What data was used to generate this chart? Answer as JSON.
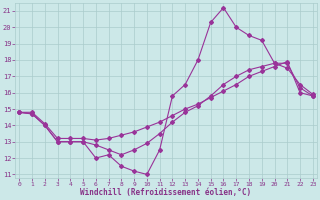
{
  "background_color": "#cce8e8",
  "grid_color": "#aacccc",
  "line_color": "#993399",
  "xlabel": "Windchill (Refroidissement éolien,°C)",
  "xlim_min": -0.3,
  "xlim_max": 23.3,
  "ylim_min": 10.8,
  "ylim_max": 21.5,
  "xticks": [
    0,
    1,
    2,
    3,
    4,
    5,
    6,
    7,
    8,
    9,
    10,
    11,
    12,
    13,
    14,
    15,
    16,
    17,
    18,
    19,
    20,
    21,
    22,
    23
  ],
  "yticks": [
    11,
    12,
    13,
    14,
    15,
    16,
    17,
    18,
    19,
    20,
    21
  ],
  "curve1_x": [
    0,
    1,
    2,
    3,
    4,
    5,
    6,
    7,
    8,
    9,
    10,
    11,
    12,
    13,
    14,
    15,
    16,
    17,
    18,
    19,
    20,
    21,
    22,
    23
  ],
  "curve1_y": [
    14.8,
    14.7,
    14.0,
    13.0,
    13.0,
    13.0,
    12.0,
    12.2,
    11.5,
    11.2,
    11.0,
    12.5,
    15.8,
    16.5,
    18.0,
    20.3,
    21.2,
    20.0,
    19.5,
    19.2,
    17.8,
    17.5,
    16.5,
    15.9
  ],
  "curve2_x": [
    0,
    1,
    2,
    3,
    4,
    5,
    6,
    7,
    8,
    9,
    10,
    11,
    12,
    13,
    14,
    15,
    16,
    17,
    18,
    19,
    20,
    21,
    22,
    23
  ],
  "curve2_y": [
    14.8,
    14.7,
    14.0,
    13.0,
    13.0,
    13.0,
    12.8,
    12.5,
    12.2,
    12.5,
    12.9,
    13.5,
    14.2,
    14.8,
    15.2,
    15.8,
    16.5,
    17.0,
    17.4,
    17.6,
    17.8,
    17.8,
    16.3,
    15.8
  ],
  "curve3_x": [
    0,
    1,
    2,
    3,
    4,
    5,
    6,
    7,
    8,
    9,
    10,
    11,
    12,
    13,
    14,
    15,
    16,
    17,
    18,
    19,
    20,
    21,
    22,
    23
  ],
  "curve3_y": [
    14.8,
    14.8,
    14.1,
    13.2,
    13.2,
    13.2,
    13.1,
    13.2,
    13.4,
    13.6,
    13.9,
    14.2,
    14.6,
    15.0,
    15.3,
    15.7,
    16.1,
    16.5,
    17.0,
    17.3,
    17.6,
    17.9,
    16.0,
    15.8
  ]
}
